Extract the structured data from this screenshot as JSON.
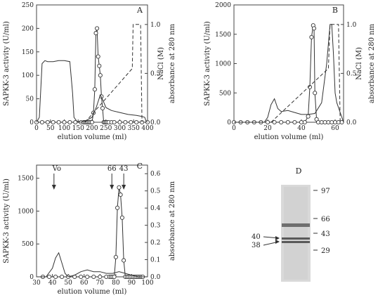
{
  "chart_data": [
    {
      "panel": "A",
      "type": "line",
      "xlabel": "elution volume (ml)",
      "ylabel": "SAPKK-3 activity (U/ml)",
      "y2label_outer": "absorbance at 280 nm",
      "y2label_inner": "NaCl (M)",
      "xlim": [
        0,
        400
      ],
      "ylim": [
        0,
        250
      ],
      "y2lim": [
        0,
        1.2
      ],
      "xticks": [
        "0",
        "50",
        "100",
        "150",
        "200",
        "250",
        "300",
        "350",
        "400"
      ],
      "yticks": [
        "0",
        "50",
        "100",
        "150",
        "200",
        "250"
      ],
      "y2ticks": [
        "0.0",
        "0.5",
        "1.0"
      ],
      "series": [
        {
          "role": "activity",
          "style": "line-with-open-circles",
          "x": [
            0,
            20,
            40,
            60,
            80,
            100,
            120,
            140,
            160,
            170,
            175,
            180,
            185,
            190,
            195,
            200,
            205,
            210,
            214,
            218,
            222,
            226,
            230,
            234,
            238,
            242,
            246,
            250,
            255,
            260,
            270,
            280,
            300,
            320,
            340,
            360,
            380,
            400
          ],
          "y": [
            0,
            0,
            0,
            0,
            0,
            0,
            0,
            0,
            0,
            0,
            0,
            0,
            0,
            0,
            0,
            0,
            20,
            70,
            190,
            200,
            140,
            120,
            100,
            55,
            30,
            0,
            0,
            0,
            0,
            0,
            0,
            0,
            0,
            0,
            0,
            0,
            0,
            0
          ]
        },
        {
          "role": "absorbance",
          "style": "solid",
          "x": [
            0,
            10,
            20,
            30,
            40,
            60,
            80,
            100,
            120,
            130,
            135,
            145,
            160,
            180,
            200,
            215,
            230,
            240,
            250,
            270,
            300,
            330,
            360,
            380,
            390,
            395,
            400
          ],
          "y2": [
            0.0,
            0.05,
            0.6,
            0.63,
            0.62,
            0.62,
            0.63,
            0.63,
            0.62,
            0.3,
            0.05,
            0.01,
            0.0,
            0.02,
            0.05,
            0.15,
            0.28,
            0.22,
            0.15,
            0.12,
            0.1,
            0.08,
            0.07,
            0.06,
            0.05,
            0.01,
            0.0
          ]
        },
        {
          "role": "NaCl",
          "style": "dashed",
          "x": [
            175,
            345,
            348,
            365,
            375,
            380
          ],
          "y2": [
            0.0,
            0.55,
            1.0,
            1.0,
            1.0,
            0.0
          ]
        }
      ]
    },
    {
      "panel": "B",
      "type": "line",
      "xlabel": "elution volume (ml)",
      "ylabel": "SAPKK-3 activity (U/ml)",
      "y2label_outer": "absorbance at 280 nm",
      "y2label_inner": "NaCl (M)",
      "xlim": [
        0,
        65
      ],
      "ylim": [
        0,
        2000
      ],
      "y2lim": [
        0,
        1.2
      ],
      "xticks": [
        "0",
        "20",
        "40",
        "60"
      ],
      "yticks": [
        "0",
        "500",
        "1000",
        "1500",
        "2000"
      ],
      "y2ticks": [
        "0.0",
        "0.5",
        "1.0"
      ],
      "series": [
        {
          "role": "activity",
          "style": "line-with-open-circles",
          "x": [
            0,
            4,
            8,
            12,
            16,
            20,
            24,
            28,
            32,
            36,
            40,
            42,
            44,
            45,
            46,
            47,
            47.5,
            48,
            49,
            50,
            52,
            54,
            56,
            58,
            60,
            62,
            64
          ],
          "y": [
            0,
            0,
            0,
            0,
            0,
            0,
            0,
            0,
            0,
            0,
            0,
            0,
            100,
            600,
            1450,
            1650,
            1600,
            500,
            50,
            0,
            0,
            0,
            0,
            0,
            0,
            0,
            0
          ]
        },
        {
          "role": "absorbance",
          "style": "solid",
          "x": [
            0,
            18,
            20,
            22,
            24,
            26,
            28,
            32,
            36,
            40,
            44,
            48,
            52,
            55,
            57,
            58,
            59,
            60,
            61,
            62,
            63,
            64,
            65
          ],
          "y2": [
            0.0,
            0.0,
            0.05,
            0.18,
            0.24,
            0.14,
            0.11,
            0.12,
            0.1,
            0.08,
            0.08,
            0.09,
            0.2,
            0.6,
            1.0,
            1.0,
            0.7,
            0.3,
            0.2,
            0.15,
            0.1,
            0.05,
            0.0
          ]
        },
        {
          "role": "NaCl",
          "style": "dashed",
          "x": [
            22,
            56,
            57,
            60,
            62,
            63
          ],
          "y2": [
            0.0,
            0.55,
            1.0,
            1.0,
            1.0,
            0.0
          ]
        }
      ]
    },
    {
      "panel": "C",
      "type": "line",
      "xlabel": "elution volume (ml)",
      "ylabel": "SAPKK-3 activity (U/ml)",
      "y2label_outer": "absorbance at 280 nm",
      "xlim": [
        30,
        100
      ],
      "ylim": [
        0,
        1700
      ],
      "y2lim": [
        0,
        0.65
      ],
      "xticks": [
        "30",
        "40",
        "50",
        "60",
        "70",
        "80",
        "90",
        "100"
      ],
      "yticks": [
        "0",
        "500",
        "1000",
        "1500"
      ],
      "y2ticks": [
        "0.0",
        "0.1",
        "0.2",
        "0.3",
        "0.4",
        "0.5",
        "0.6"
      ],
      "annotations": [
        {
          "text": "Vo",
          "x": 41
        },
        {
          "text": "66",
          "x": 77.5
        },
        {
          "text": "43",
          "x": 85
        }
      ],
      "series": [
        {
          "role": "activity",
          "style": "line-with-open-circles",
          "x": [
            34,
            38,
            42,
            46,
            50,
            54,
            58,
            62,
            66,
            70,
            74,
            76,
            77,
            78,
            79,
            80,
            81,
            82,
            83,
            84,
            85,
            86,
            87,
            88,
            89,
            90,
            91,
            92,
            93,
            94,
            95,
            96,
            97
          ],
          "y": [
            0,
            0,
            0,
            0,
            0,
            0,
            0,
            0,
            0,
            0,
            0,
            0,
            0,
            0,
            0,
            300,
            1050,
            1360,
            1250,
            900,
            250,
            0,
            0,
            0,
            0,
            0,
            0,
            0,
            0,
            0,
            0,
            0,
            0
          ]
        },
        {
          "role": "absorbance",
          "style": "solid",
          "x": [
            30,
            36,
            40,
            42,
            44,
            46,
            48,
            50,
            54,
            58,
            62,
            66,
            70,
            74,
            78,
            82,
            86,
            90,
            94,
            98,
            100
          ],
          "y2": [
            0.0,
            0.0,
            0.05,
            0.11,
            0.14,
            0.08,
            0.02,
            0.0,
            0.01,
            0.03,
            0.04,
            0.03,
            0.03,
            0.02,
            0.02,
            0.03,
            0.02,
            0.01,
            0.0,
            0.0,
            0.0
          ]
        }
      ]
    }
  ],
  "gel": {
    "panel": "D",
    "markers": [
      "97",
      "66",
      "43",
      "29"
    ],
    "band_labels": [
      "40",
      "38"
    ]
  }
}
